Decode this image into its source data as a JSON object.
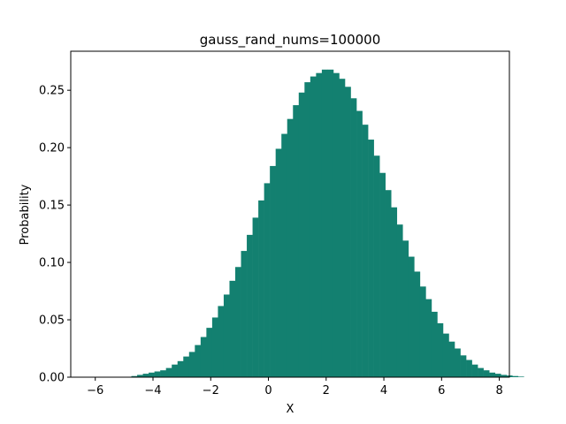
{
  "chart_data": {
    "type": "bar",
    "title": "gauss_rand_nums=100000",
    "xlabel": "X",
    "ylabel": "Probability",
    "xlim": [
      -6.85,
      8.35
    ],
    "ylim": [
      0,
      0.284
    ],
    "x_ticks": [
      -6,
      -4,
      -2,
      0,
      2,
      4,
      6,
      8
    ],
    "y_ticks": [
      0.0,
      0.05,
      0.1,
      0.15,
      0.2,
      0.25
    ],
    "x_tick_labels": [
      "−6",
      "−4",
      "−2",
      "0",
      "2",
      "4",
      "6",
      "8"
    ],
    "y_tick_labels": [
      "0.00",
      "0.05",
      "0.10",
      "0.15",
      "0.20",
      "0.25"
    ],
    "grid": false,
    "bar_color": "#138070",
    "bin_width": 0.2,
    "bin_start": -4.75,
    "values": [
      0.001,
      0.002,
      0.003,
      0.004,
      0.005,
      0.006,
      0.008,
      0.011,
      0.014,
      0.018,
      0.022,
      0.028,
      0.035,
      0.043,
      0.052,
      0.062,
      0.072,
      0.084,
      0.096,
      0.11,
      0.124,
      0.139,
      0.154,
      0.169,
      0.184,
      0.199,
      0.212,
      0.225,
      0.237,
      0.248,
      0.257,
      0.262,
      0.265,
      0.268,
      0.268,
      0.265,
      0.26,
      0.253,
      0.243,
      0.232,
      0.22,
      0.207,
      0.193,
      0.178,
      0.163,
      0.148,
      0.133,
      0.119,
      0.105,
      0.092,
      0.079,
      0.068,
      0.057,
      0.047,
      0.038,
      0.031,
      0.025,
      0.019,
      0.015,
      0.011,
      0.008,
      0.006,
      0.004,
      0.003,
      0.002,
      0.0015,
      0.001,
      0.0005
    ]
  }
}
